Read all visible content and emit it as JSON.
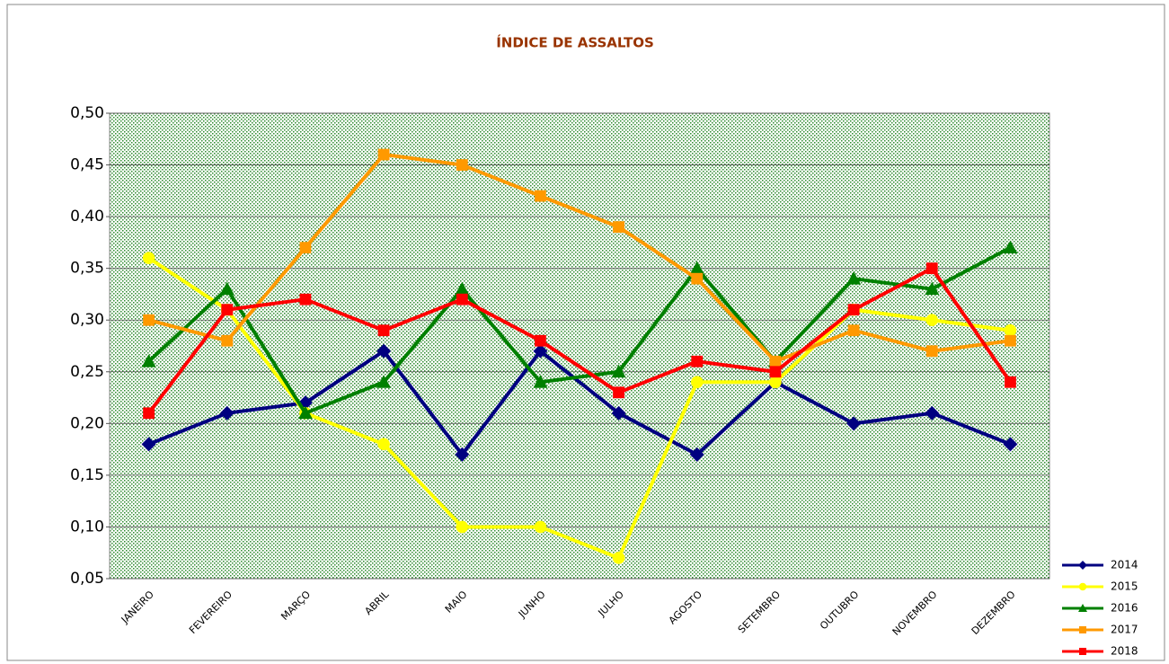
{
  "chart_data": {
    "type": "line",
    "title": "ÍNDICE DE ASSALTOS",
    "categories": [
      "JANEIRO",
      "FEVEREIRO",
      "MARÇO",
      "ABRIL",
      "MAIO",
      "JUNHO",
      "JULHO",
      "AGOSTO",
      "SETEMBRO",
      "OUTUBRO",
      "NOVEMBRO",
      "DEZEMBRO"
    ],
    "series": [
      {
        "name": "2014",
        "color": "#000080",
        "marker": "diamond",
        "values": [
          0.18,
          0.21,
          0.22,
          0.27,
          0.17,
          0.27,
          0.21,
          0.17,
          0.24,
          0.2,
          0.21,
          0.18
        ]
      },
      {
        "name": "2015",
        "color": "#ffff00",
        "marker": "circle",
        "values": [
          0.36,
          0.31,
          0.21,
          0.18,
          0.1,
          0.1,
          0.07,
          0.24,
          0.24,
          0.31,
          0.3,
          0.29
        ]
      },
      {
        "name": "2016",
        "color": "#008000",
        "marker": "triangle",
        "values": [
          0.26,
          0.33,
          0.21,
          0.24,
          0.33,
          0.24,
          0.25,
          0.35,
          0.26,
          0.34,
          0.33,
          0.37
        ]
      },
      {
        "name": "2017",
        "color": "#ff9900",
        "marker": "square",
        "values": [
          0.3,
          0.28,
          0.37,
          0.46,
          0.45,
          0.42,
          0.39,
          0.34,
          0.26,
          0.29,
          0.27,
          0.28
        ]
      },
      {
        "name": "2018",
        "color": "#ff0000",
        "marker": "square",
        "values": [
          0.21,
          0.31,
          0.32,
          0.29,
          0.32,
          0.28,
          0.23,
          0.26,
          0.25,
          0.31,
          0.35,
          0.24
        ]
      }
    ],
    "ylim": [
      0.05,
      0.5
    ],
    "yticks": [
      {
        "value": 0.05,
        "label": "0,05"
      },
      {
        "value": 0.1,
        "label": "0,10"
      },
      {
        "value": 0.15,
        "label": "0,15"
      },
      {
        "value": 0.2,
        "label": "0,20"
      },
      {
        "value": 0.25,
        "label": "0,25"
      },
      {
        "value": 0.3,
        "label": "0,30"
      },
      {
        "value": 0.35,
        "label": "0,35"
      },
      {
        "value": 0.4,
        "label": "0,40"
      },
      {
        "value": 0.45,
        "label": "0,45"
      },
      {
        "value": 0.5,
        "label": "0,50"
      }
    ],
    "grid": true,
    "legend": "bottom-right"
  }
}
